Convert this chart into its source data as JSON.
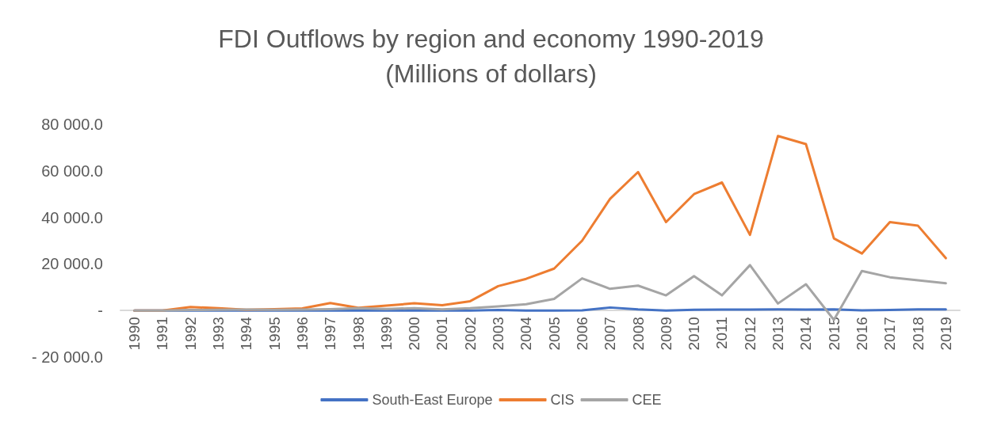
{
  "chart_data": {
    "type": "line",
    "title": "FDI Outflows by region and economy 1990-2019\n(Millions of dollars)",
    "categories": [
      "1990",
      "1991",
      "1992",
      "1993",
      "1994",
      "1995",
      "1996",
      "1997",
      "1998",
      "1999",
      "2000",
      "2001",
      "2002",
      "2003",
      "2004",
      "2005",
      "2006",
      "2007",
      "2008",
      "2009",
      "2010",
      "2011",
      "2012",
      "2013",
      "2014",
      "2015",
      "2016",
      "2017",
      "2018",
      "2019"
    ],
    "series": [
      {
        "name": "South-East Europe",
        "color": "#4472c4",
        "values": [
          0,
          0,
          0,
          0,
          0,
          0,
          0,
          0,
          0,
          0,
          0,
          0,
          0,
          200,
          0,
          0,
          100,
          1300,
          500,
          0,
          300,
          400,
          400,
          500,
          400,
          500,
          100,
          200,
          500,
          500
        ]
      },
      {
        "name": "CIS",
        "color": "#ed7d31",
        "values": [
          0,
          0,
          1500,
          1000,
          300,
          600,
          900,
          3200,
          1200,
          2100,
          3100,
          2300,
          4000,
          10500,
          13600,
          18000,
          30000,
          48000,
          59500,
          38000,
          50000,
          55000,
          32500,
          75000,
          71500,
          31000,
          24500,
          38000,
          36500,
          22500
        ]
      },
      {
        "name": "CEE",
        "color": "#a5a5a5",
        "values": [
          0,
          0,
          200,
          300,
          400,
          300,
          400,
          600,
          1000,
          700,
          1000,
          500,
          1000,
          1800,
          2700,
          5000,
          13800,
          9300,
          10700,
          6500,
          14800,
          6500,
          19500,
          3000,
          11300,
          -4000,
          17000,
          14300,
          13000,
          11700
        ]
      }
    ],
    "ylim": [
      -20000,
      80000
    ],
    "yticks": [
      {
        "value": -20000,
        "label": "- 20 000.0"
      },
      {
        "value": 0,
        "label": "-"
      },
      {
        "value": 20000,
        "label": "20 000.0"
      },
      {
        "value": 40000,
        "label": "40 000.0"
      },
      {
        "value": 60000,
        "label": "60 000.0"
      },
      {
        "value": 80000,
        "label": "80 000.0"
      }
    ],
    "grid": false,
    "legend": "bottom",
    "marker": "none",
    "line_style": "solid"
  }
}
